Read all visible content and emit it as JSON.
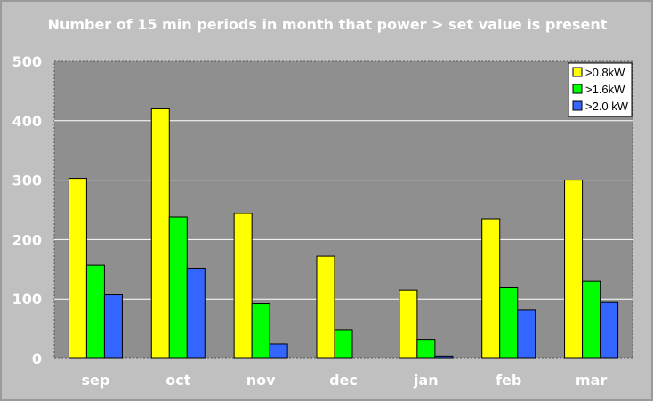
{
  "chart_data": {
    "type": "bar",
    "title": "Number of 15 min periods in month that power > set value is present",
    "xlabel": "",
    "ylabel": "",
    "categories": [
      "sep",
      "oct",
      "nov",
      "dec",
      "jan",
      "feb",
      "mar"
    ],
    "series": [
      {
        "name": ">0.8kW",
        "color": "#ffff00",
        "values": [
          303,
          420,
          244,
          172,
          115,
          235,
          300
        ]
      },
      {
        "name": ">1.6kW",
        "color": "#00ff00",
        "values": [
          157,
          238,
          92,
          48,
          32,
          119,
          130
        ]
      },
      {
        "name": ">2.0 kW",
        "color": "#3366ff",
        "values": [
          107,
          152,
          24,
          0,
          4,
          81,
          94
        ]
      }
    ],
    "ylim": [
      0,
      500
    ],
    "yticks": [
      "0",
      "100",
      "200",
      "300",
      "400",
      "500"
    ],
    "grid": true,
    "legend_position": "top-right",
    "plot_background": "#8f8f8f",
    "chart_background": "#c0c0c0"
  }
}
